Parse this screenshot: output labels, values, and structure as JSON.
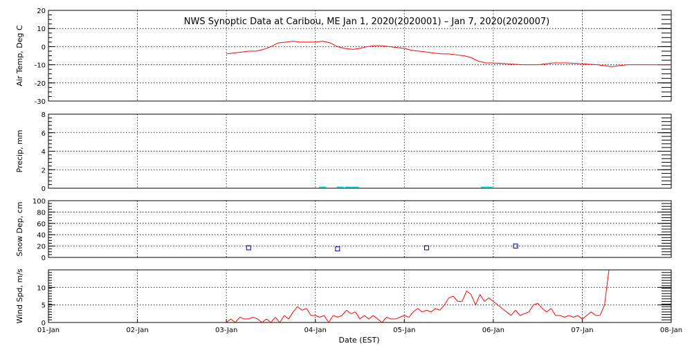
{
  "chart_data": {
    "title": "NWS Synoptic Data at Caribou, ME   Jan  1, 2020(2020001) – Jan  7, 2020(2020007)",
    "xlabel": "Date (EST)",
    "xticks": [
      "01-Jan",
      "02-Jan",
      "03-Jan",
      "04-Jan",
      "05-Jan",
      "06-Jan",
      "07-Jan",
      "08-Jan"
    ],
    "xlim": [
      0,
      7
    ],
    "panels": [
      {
        "id": "air-temp",
        "type": "line",
        "ylabel": "Air Temp, Deg C",
        "ylim": [
          -30,
          20
        ],
        "yticks": [
          -30,
          -20,
          -10,
          0,
          10,
          20
        ],
        "color": "#ff0000",
        "x": [
          2.0,
          2.08,
          2.17,
          2.25,
          2.33,
          2.42,
          2.5,
          2.58,
          2.67,
          2.75,
          2.83,
          2.92,
          3.0,
          3.08,
          3.17,
          3.25,
          3.33,
          3.42,
          3.5,
          3.58,
          3.67,
          3.75,
          3.83,
          3.92,
          4.0,
          4.08,
          4.17,
          4.25,
          4.33,
          4.42,
          4.5,
          4.58,
          4.67,
          4.75,
          4.83,
          4.92,
          5.0,
          5.17,
          5.33,
          5.5,
          5.67,
          5.83,
          6.0,
          6.17,
          6.33,
          6.5,
          6.67,
          6.83,
          7.0
        ],
        "y": [
          -4,
          -3.5,
          -3,
          -2.5,
          -2.5,
          -1.5,
          0,
          2,
          2.5,
          3,
          2.5,
          2.5,
          2.5,
          3,
          2,
          0,
          -1,
          -1.5,
          -1,
          0,
          0.5,
          0.5,
          0,
          -0.5,
          -1,
          -2,
          -2.5,
          -3,
          -3.5,
          -4,
          -4,
          -4.5,
          -5,
          -6,
          -8,
          -9,
          -9,
          -9.5,
          -10,
          -10,
          -9,
          -9,
          -9.5,
          -10,
          -11,
          -10,
          -10,
          -10,
          -10
        ]
      },
      {
        "id": "precip",
        "type": "bar",
        "ylabel": "Precip, mm",
        "ylim": [
          0,
          8
        ],
        "yticks": [
          0,
          2,
          4,
          6,
          8
        ],
        "color": "#00e0e0",
        "x": [
          3.08,
          3.28,
          3.37,
          3.45,
          4.9,
          4.95
        ],
        "y": [
          0.1,
          0.1,
          0.1,
          0.1,
          0.1,
          0.1
        ]
      },
      {
        "id": "snow-depth",
        "type": "scatter",
        "ylabel": "Snow Dep, cm",
        "ylim": [
          0,
          100
        ],
        "yticks": [
          0,
          20,
          40,
          60,
          80,
          100
        ],
        "color": "#00008b",
        "x": [
          2.25,
          3.25,
          4.25,
          5.25
        ],
        "y": [
          17,
          15,
          17,
          20
        ]
      },
      {
        "id": "wind-speed",
        "type": "line",
        "ylabel": "Wind Spd, m/s",
        "ylim": [
          0,
          15
        ],
        "yticks": [
          0,
          5,
          10
        ],
        "color": "#ff0000",
        "x": [
          2.0,
          2.05,
          2.1,
          2.15,
          2.2,
          2.25,
          2.3,
          2.35,
          2.4,
          2.45,
          2.5,
          2.55,
          2.6,
          2.65,
          2.7,
          2.75,
          2.8,
          2.85,
          2.9,
          2.95,
          3.0,
          3.05,
          3.1,
          3.15,
          3.2,
          3.25,
          3.3,
          3.35,
          3.4,
          3.45,
          3.5,
          3.55,
          3.6,
          3.65,
          3.7,
          3.75,
          3.8,
          3.85,
          3.9,
          3.95,
          4.0,
          4.05,
          4.1,
          4.15,
          4.2,
          4.25,
          4.3,
          4.35,
          4.4,
          4.45,
          4.5,
          4.55,
          4.6,
          4.65,
          4.7,
          4.75,
          4.8,
          4.85,
          4.9,
          4.95,
          5.0,
          5.05,
          5.1,
          5.15,
          5.2,
          5.25,
          5.3,
          5.35,
          5.4,
          5.45,
          5.5,
          5.55,
          5.6,
          5.65,
          5.7,
          5.75,
          5.8,
          5.85,
          5.9,
          5.95,
          6.0,
          6.05,
          6.1,
          6.15,
          6.2,
          6.25,
          6.3
        ],
        "y": [
          0,
          1,
          0,
          1.5,
          1,
          1,
          1.5,
          1,
          0,
          1,
          0,
          1.5,
          0,
          2,
          1,
          3,
          4.5,
          3.5,
          4,
          2,
          2,
          1.5,
          2,
          0,
          2,
          1.5,
          2,
          3.5,
          2.5,
          3,
          1,
          2,
          1,
          2,
          1,
          0,
          1.5,
          1,
          1,
          1.5,
          2,
          1.5,
          3,
          4,
          3,
          3.5,
          3,
          4,
          3.5,
          5,
          7,
          7.5,
          6,
          6,
          9,
          8,
          5,
          8,
          6,
          7,
          6,
          5,
          4,
          3,
          2,
          3.5,
          2,
          2.5,
          3,
          5,
          5.5,
          4,
          3,
          4,
          2,
          2,
          1.5,
          2,
          1.5,
          2,
          1,
          2,
          3,
          2,
          2,
          5,
          15
        ]
      }
    ]
  }
}
